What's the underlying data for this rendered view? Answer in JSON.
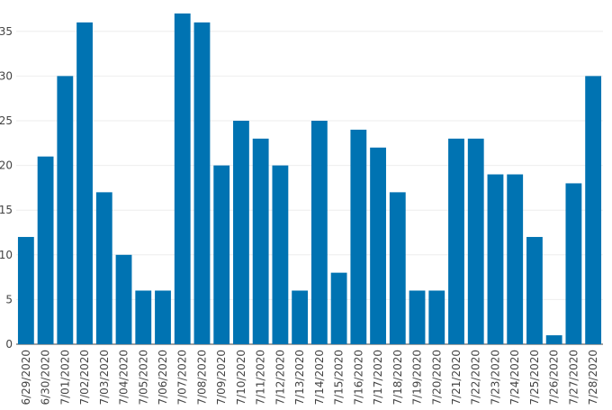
{
  "chart_data": {
    "type": "bar",
    "title": "",
    "xlabel": "",
    "ylabel": "",
    "ylim": [
      0,
      37.5
    ],
    "yticks": [
      "0",
      "5",
      "10",
      "15",
      "20",
      "25",
      "30",
      "35"
    ],
    "grid": true,
    "bar_color": "#0073b2",
    "categories": [
      "6/29/2020",
      "6/30/2020",
      "7/01/2020",
      "7/02/2020",
      "7/03/2020",
      "7/04/2020",
      "7/05/2020",
      "7/06/2020",
      "7/07/2020",
      "7/08/2020",
      "7/09/2020",
      "7/10/2020",
      "7/11/2020",
      "7/12/2020",
      "7/13/2020",
      "7/14/2020",
      "7/15/2020",
      "7/16/2020",
      "7/17/2020",
      "7/18/2020",
      "7/19/2020",
      "7/20/2020",
      "7/21/2020",
      "7/22/2020",
      "7/23/2020",
      "7/24/2020",
      "7/25/2020",
      "7/26/2020",
      "7/27/2020",
      "7/28/2020"
    ],
    "values": [
      12,
      21,
      30,
      36,
      17,
      10,
      6,
      6,
      37,
      36,
      20,
      25,
      23,
      20,
      6,
      25,
      8,
      24,
      22,
      17,
      6,
      6,
      23,
      23,
      19,
      19,
      12,
      1,
      18,
      30
    ]
  }
}
